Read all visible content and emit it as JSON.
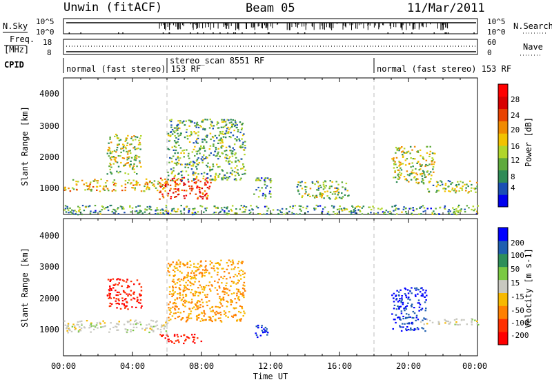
{
  "header": {
    "station": "Unwin (fitACF)",
    "beam": "Beam 05",
    "date": "11/Mar/2011"
  },
  "noise_panel": {
    "left_label": "N.Sky",
    "right_label": "N.Search",
    "left_ticks": [
      "10^5",
      "10^0"
    ],
    "right_ticks": [
      "10^5",
      "10^0"
    ]
  },
  "freq_panel": {
    "left_label_1": "Freq.",
    "left_label_2": "[MHz]",
    "right_label": "Nave",
    "left_ticks": [
      "18",
      "8"
    ],
    "right_ticks": [
      "60",
      "0"
    ]
  },
  "cpid": {
    "label": "CPID",
    "segments": [
      {
        "text": "normal (fast stereo) 153 RF",
        "start_h": 0
      },
      {
        "text": "stereo_scan 8551 RF",
        "start_h": 6
      },
      {
        "text": "normal (fast stereo) 153 RF",
        "start_h": 18
      }
    ]
  },
  "x_axis": {
    "label": "Time UT",
    "ticks": [
      "00:00",
      "04:00",
      "08:00",
      "12:00",
      "16:00",
      "20:00",
      "00:00"
    ]
  },
  "chart_data": [
    {
      "type": "heatmap",
      "quantity": "Power",
      "ylabel": "Slant Range [km]",
      "yticks": [
        "1000",
        "2000",
        "3000",
        "4000"
      ],
      "ylim": [
        180,
        4600
      ],
      "xlim_hours": [
        0,
        24
      ],
      "colorbar": {
        "label": "Power [dB]",
        "ticks": [
          "4",
          "8",
          "12",
          "16",
          "20",
          "24",
          "28"
        ],
        "colors": [
          "#0000ee",
          "#1a4fb4",
          "#2e8b57",
          "#5faa3c",
          "#b0d62a",
          "#f2c200",
          "#f08a00",
          "#e84200",
          "#d80000",
          "#ff0000"
        ]
      },
      "regions": [
        {
          "t": [
            0.0,
            6.0
          ],
          "r": [
            950,
            1350
          ],
          "level": 0.55,
          "note": "main echo band"
        },
        {
          "t": [
            5.5,
            8.5
          ],
          "r": [
            700,
            1400
          ],
          "level": 0.8
        },
        {
          "t": [
            2.5,
            4.5
          ],
          "r": [
            1500,
            2800
          ],
          "level": 0.45
        },
        {
          "t": [
            6.0,
            10.5
          ],
          "r": [
            1300,
            3300
          ],
          "level": 0.35
        },
        {
          "t": [
            11.0,
            12.0
          ],
          "r": [
            700,
            1400
          ],
          "level": 0.3
        },
        {
          "t": [
            13.5,
            16.5
          ],
          "r": [
            700,
            1300
          ],
          "level": 0.4
        },
        {
          "t": [
            19.0,
            21.5
          ],
          "r": [
            1200,
            2400
          ],
          "level": 0.45
        },
        {
          "t": [
            21.0,
            24.0
          ],
          "r": [
            900,
            1300
          ],
          "level": 0.4
        },
        {
          "t": [
            0.0,
            24.0
          ],
          "r": [
            200,
            500
          ],
          "level": 0.3,
          "note": "near-range clutter"
        }
      ]
    },
    {
      "type": "heatmap",
      "quantity": "Velocity",
      "ylabel": "Slant Range [km]",
      "yticks": [
        "1000",
        "2000",
        "3000",
        "4000"
      ],
      "ylim": [
        180,
        4600
      ],
      "xlim_hours": [
        0,
        24
      ],
      "colorbar": {
        "label": "Velocity [m s-1]",
        "ticks": [
          "200",
          "100",
          "50",
          "15",
          "-15",
          "-50",
          "-100",
          "-200"
        ],
        "colors": [
          "#0000ff",
          "#1f5fb0",
          "#2e8f5a",
          "#7ac943",
          "#c8c8c0",
          "#f7b900",
          "#ff8000",
          "#ff3000",
          "#ff0000"
        ]
      },
      "regions": [
        {
          "t": [
            0.0,
            6.0
          ],
          "r": [
            950,
            1350
          ],
          "velocity": 0,
          "note": "ground scatter grey"
        },
        {
          "t": [
            2.5,
            4.5
          ],
          "r": [
            1700,
            2700
          ],
          "velocity": -200
        },
        {
          "t": [
            6.0,
            10.5
          ],
          "r": [
            1300,
            3300
          ],
          "velocity": -50
        },
        {
          "t": [
            5.5,
            8.0
          ],
          "r": [
            600,
            900
          ],
          "velocity": -200
        },
        {
          "t": [
            11.0,
            12.0
          ],
          "r": [
            800,
            1200
          ],
          "velocity": 200
        },
        {
          "t": [
            19.0,
            21.0
          ],
          "r": [
            1000,
            2400
          ],
          "velocity": 200
        },
        {
          "t": [
            20.5,
            24.0
          ],
          "r": [
            1200,
            1400
          ],
          "velocity": 0
        }
      ]
    }
  ]
}
